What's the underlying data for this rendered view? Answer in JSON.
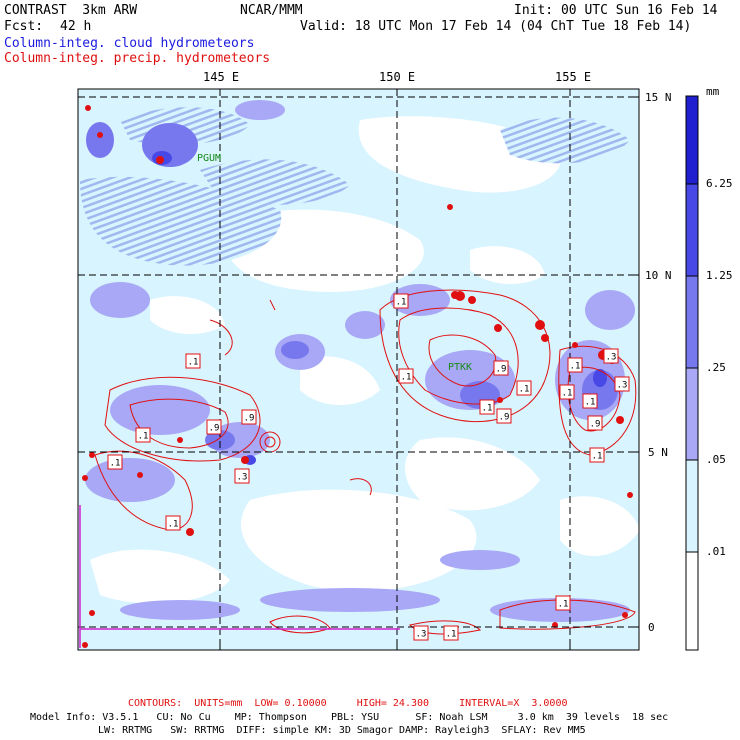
{
  "header": {
    "model": "CONTRAST  3km ARW",
    "org": "NCAR/MMM",
    "init": "Init: 00 UTC Sun 16 Feb 14",
    "fcst_label": "Fcst:",
    "fcst_value": "42 h",
    "valid": "Valid: 18 UTC Mon 17 Feb 14 (04 ChT Tue 18 Feb 14)",
    "field1": "Column-integ. cloud hydrometeors",
    "field2": "Column-integ. precip. hydrometeors"
  },
  "map": {
    "lon_labels": [
      "145 E",
      "150 E",
      "155 E"
    ],
    "lat_labels": [
      "15 N",
      "10 N",
      "5 N",
      "0"
    ],
    "stations": [
      "PGUM",
      "PTKK"
    ],
    "contour_labels": [
      ".1",
      ".1",
      ".1",
      ".1",
      ".9",
      ".9",
      ".3",
      ".1",
      ".3",
      ".1",
      ".1",
      ".1",
      ".9",
      ".1",
      ".9",
      ".1",
      ".3",
      ".1",
      ".9",
      ".1",
      ".3",
      ".1",
      ".1"
    ]
  },
  "colorbar": {
    "unit": "mm",
    "levels": [
      "6.25",
      "1.25",
      ".25",
      ".05",
      ".01"
    ],
    "colors": [
      "#2020d0",
      "#4848e6",
      "#7878ee",
      "#a8a8f6",
      "#d8f4ff",
      "#ffffff"
    ]
  },
  "footer": {
    "contours": "CONTOURS:  UNITS=mm  LOW= 0.10000     HIGH= 24.300     INTERVAL=X  3.0000",
    "line1": "Model Info: V3.5.1   CU: No Cu    MP: Thompson    PBL: YSU      SF: Noah LSM     3.0 km  39 levels  18 sec",
    "line2": "LW: RRTMG   SW: RRTMG  DIFF: simple KM: 3D Smagor DAMP: Rayleigh3  SFLAY: Rev MM5"
  }
}
